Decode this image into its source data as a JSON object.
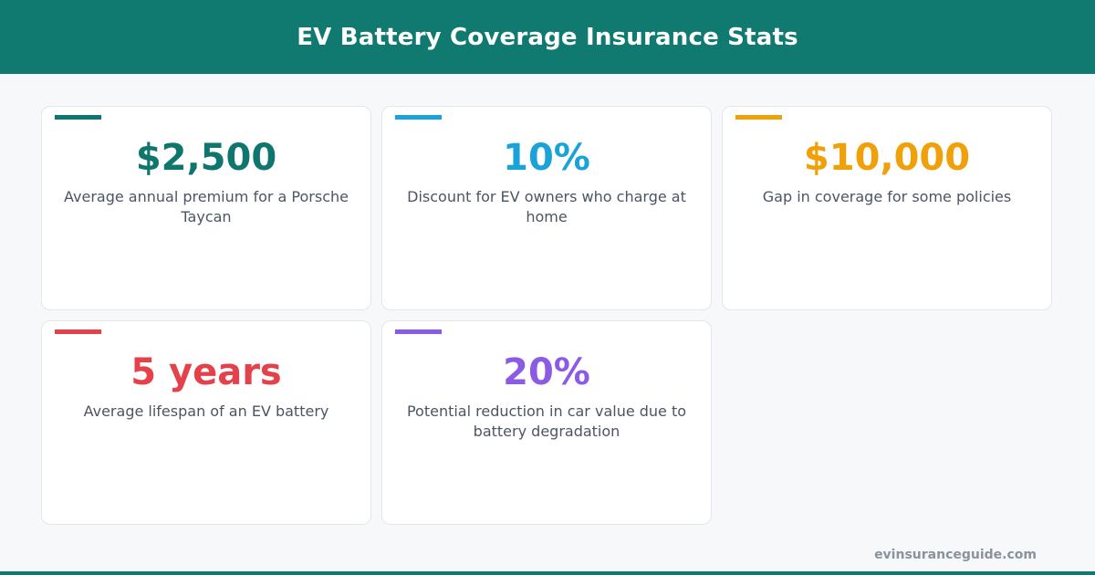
{
  "header": {
    "title": "EV Battery Coverage Insurance Stats"
  },
  "colors": {
    "header_bg": "#107a70",
    "stat_0": "#0f766e",
    "stat_1": "#1aa3d9",
    "stat_2": "#f0a008",
    "stat_3": "#e4414b",
    "stat_4": "#8b5be6"
  },
  "stats": [
    {
      "value": "$2,500",
      "description": "Average annual premium for a Porsche Taycan"
    },
    {
      "value": "10%",
      "description": "Discount for EV owners who charge at home"
    },
    {
      "value": "$10,000",
      "description": "Gap in coverage for some policies"
    },
    {
      "value": "5 years",
      "description": "Average lifespan of an EV battery"
    },
    {
      "value": "20%",
      "description": "Potential reduction in car value due to battery degradation"
    }
  ],
  "footer": {
    "site": "evinsuranceguide.com"
  }
}
